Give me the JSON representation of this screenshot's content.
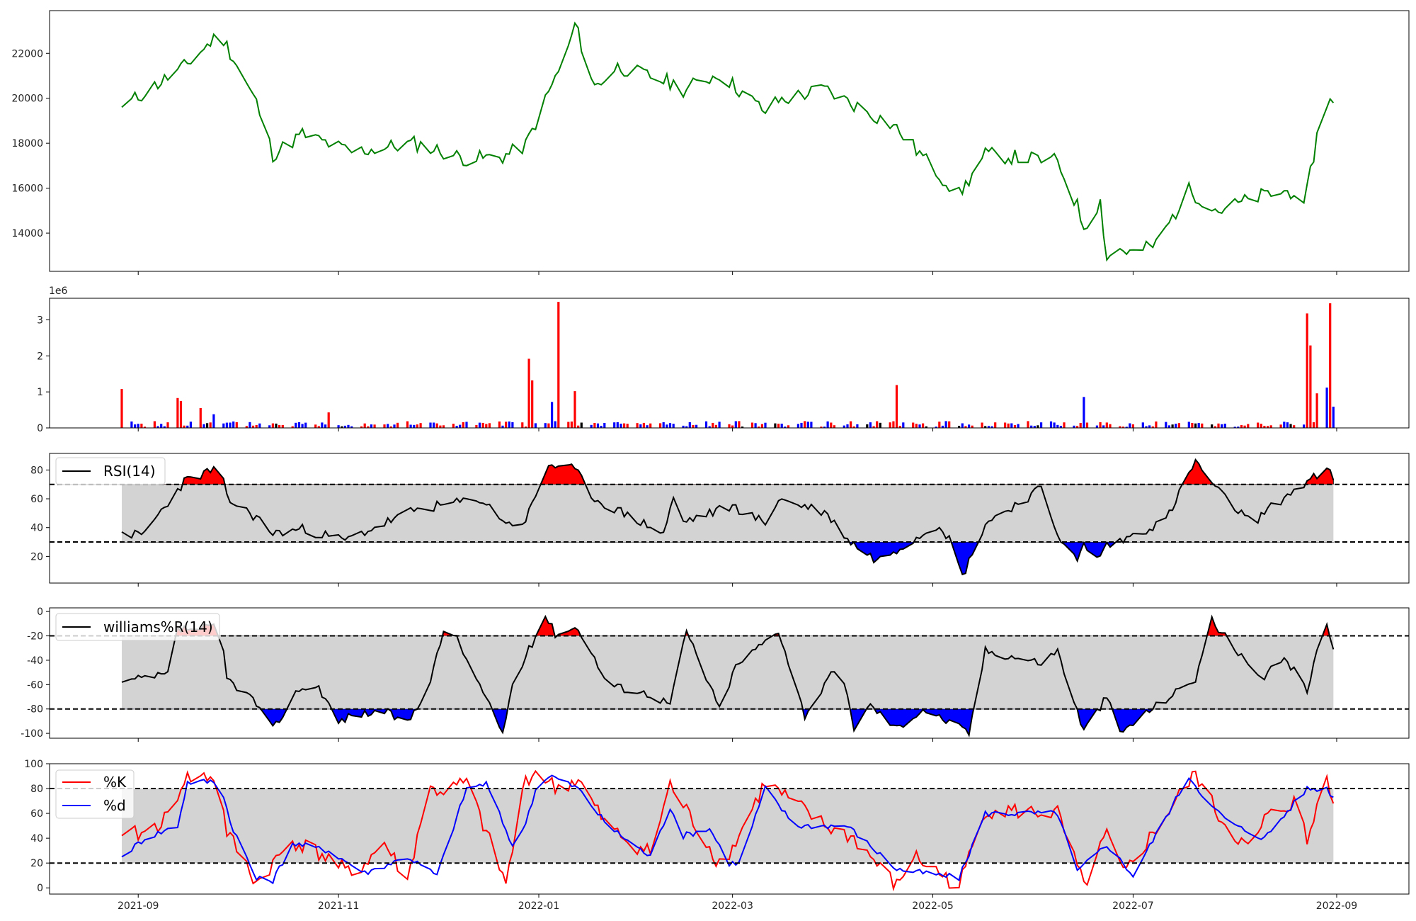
{
  "chart_data": [
    {
      "id": "price",
      "type": "line",
      "title": "",
      "color": "#008000",
      "ylim": [
        12300,
        23900
      ],
      "yticks": [
        14000,
        16000,
        18000,
        20000,
        22000
      ],
      "x": [
        "2021-08-27",
        "2021-09-15",
        "2021-09-26",
        "2021-10-07",
        "2021-10-12",
        "2021-10-21",
        "2021-11-05",
        "2021-11-24",
        "2021-12-10",
        "2021-12-21",
        "2021-12-28",
        "2022-01-06",
        "2022-01-10",
        "2022-01-12",
        "2022-01-18",
        "2022-01-25",
        "2022-02-10",
        "2022-02-14",
        "2022-02-25",
        "2022-03-11",
        "2022-03-15",
        "2022-03-29",
        "2022-04-19",
        "2022-05-03",
        "2022-05-09",
        "2022-05-17",
        "2022-06-08",
        "2022-06-14",
        "2022-06-16",
        "2022-06-21",
        "2022-06-23",
        "2022-06-27",
        "2022-07-01",
        "2022-07-08",
        "2022-07-18",
        "2022-07-27",
        "2022-08-10",
        "2022-08-20",
        "2022-08-22",
        "2022-08-26",
        "2022-08-30",
        "2022-08-31"
      ],
      "values": [
        19600,
        21400,
        22900,
        19800,
        17500,
        18400,
        17600,
        18000,
        17300,
        17400,
        17900,
        20900,
        22200,
        23300,
        20500,
        21400,
        20700,
        20400,
        21100,
        19400,
        19900,
        20400,
        18800,
        16600,
        15700,
        17500,
        17200,
        15200,
        14300,
        15400,
        12900,
        13300,
        13100,
        13500,
        15900,
        15000,
        15700,
        15900,
        15000,
        18300,
        20200,
        19800
      ]
    },
    {
      "id": "volume",
      "type": "bar",
      "offset_text": "1e6",
      "ylim": [
        0,
        3600000
      ],
      "yticks": [
        0,
        1,
        2,
        3
      ],
      "colors": {
        "up": "#ff0000",
        "down": "#0000ff",
        "flat": "#000000"
      },
      "x": [
        "2021-08-27",
        "2021-08-30",
        "2021-09-13",
        "2021-09-14",
        "2021-09-20",
        "2021-09-24",
        "2021-10-29",
        "2021-12-29",
        "2021-12-30",
        "2022-01-05",
        "2022-01-07",
        "2022-01-12",
        "2022-04-20",
        "2022-06-16",
        "2022-08-23",
        "2022-08-24",
        "2022-08-26",
        "2022-08-29",
        "2022-08-30",
        "2022-08-31"
      ],
      "values": [
        1080000,
        180000,
        830000,
        750000,
        550000,
        380000,
        430000,
        1920000,
        1320000,
        720000,
        3500000,
        1020000,
        1190000,
        860000,
        3180000,
        2290000,
        960000,
        1120000,
        3460000,
        590000
      ],
      "up_down": [
        "up",
        "down",
        "up",
        "up",
        "up",
        "down",
        "up",
        "up",
        "up",
        "down",
        "up",
        "up",
        "up",
        "down",
        "up",
        "up",
        "up",
        "down",
        "up",
        "down"
      ]
    },
    {
      "id": "rsi",
      "type": "line",
      "legend": "RSI(14)",
      "ylim": [
        1.5,
        91.5
      ],
      "yticks": [
        20,
        40,
        60,
        80
      ],
      "band": [
        30,
        70
      ],
      "x": [
        "2021-08-27",
        "2021-09-02",
        "2021-09-15",
        "2021-09-26",
        "2021-09-28",
        "2021-10-07",
        "2021-10-12",
        "2021-10-21",
        "2021-11-03",
        "2021-11-05",
        "2021-11-24",
        "2021-12-14",
        "2021-12-23",
        "2021-12-28",
        "2022-01-04",
        "2022-01-12",
        "2022-01-18",
        "2022-02-08",
        "2022-02-11",
        "2022-02-14",
        "2022-03-01",
        "2022-03-11",
        "2022-03-15",
        "2022-03-29",
        "2022-04-06",
        "2022-04-14",
        "2022-04-22",
        "2022-05-03",
        "2022-05-07",
        "2022-05-10",
        "2022-05-17",
        "2022-06-03",
        "2022-06-08",
        "2022-06-14",
        "2022-06-16",
        "2022-06-20",
        "2022-06-23",
        "2022-06-27",
        "2022-07-01",
        "2022-07-11",
        "2022-07-20",
        "2022-07-27",
        "2022-08-06",
        "2022-08-16",
        "2022-08-23",
        "2022-08-30",
        "2022-08-31"
      ],
      "values": [
        37,
        34,
        72,
        82,
        60,
        47,
        36,
        39,
        31,
        33,
        52,
        60,
        42,
        45,
        84,
        80,
        60,
        36,
        60,
        44,
        55,
        43,
        60,
        51,
        30,
        17,
        28,
        43,
        28,
        6,
        43,
        67,
        36,
        16,
        28,
        18,
        28,
        30,
        35,
        45,
        86,
        65,
        43,
        61,
        72,
        80,
        73
      ]
    },
    {
      "id": "williams",
      "type": "line",
      "legend": "williams%R(14)",
      "ylim": [
        -104,
        3
      ],
      "yticks": [
        0,
        -20,
        -40,
        -60,
        -80,
        -100
      ],
      "band": [
        -80,
        -20
      ],
      "x": [
        "2021-08-27",
        "2021-09-10",
        "2021-09-13",
        "2021-09-26",
        "2021-09-28",
        "2021-10-06",
        "2021-10-12",
        "2021-10-20",
        "2021-10-26",
        "2021-11-01",
        "2021-11-05",
        "2021-11-15",
        "2021-11-22",
        "2021-11-29",
        "2021-12-03",
        "2021-12-06",
        "2021-12-21",
        "2021-12-24",
        "2022-01-03",
        "2022-01-06",
        "2022-01-13",
        "2022-01-22",
        "2022-02-04",
        "2022-02-10",
        "2022-02-15",
        "2022-02-25",
        "2022-03-02",
        "2022-03-15",
        "2022-03-23",
        "2022-04-01",
        "2022-04-04",
        "2022-04-07",
        "2022-04-12",
        "2022-04-20",
        "2022-04-28",
        "2022-05-09",
        "2022-05-12",
        "2022-05-17",
        "2022-06-03",
        "2022-06-08",
        "2022-06-14",
        "2022-06-16",
        "2022-06-23",
        "2022-06-27",
        "2022-07-04",
        "2022-07-20",
        "2022-07-25",
        "2022-08-05",
        "2022-08-09",
        "2022-08-16",
        "2022-08-23",
        "2022-08-28",
        "2022-08-31"
      ],
      "values": [
        -58,
        -52,
        -15,
        -13,
        -55,
        -72,
        -97,
        -63,
        -62,
        -91,
        -85,
        -82,
        -92,
        -57,
        -16,
        -17,
        -100,
        -60,
        -3,
        -18,
        -13,
        -60,
        -68,
        -76,
        -16,
        -80,
        -45,
        -15,
        -85,
        -49,
        -60,
        -95,
        -77,
        -96,
        -80,
        -95,
        -100,
        -32,
        -42,
        -32,
        -82,
        -98,
        -70,
        -100,
        -85,
        -55,
        -7,
        -45,
        -57,
        -37,
        -65,
        -5,
        -31
      ]
    },
    {
      "id": "stochastic",
      "type": "line",
      "ylim": [
        -5,
        100
      ],
      "yticks": [
        0,
        20,
        40,
        60,
        80,
        100
      ],
      "band": [
        20,
        80
      ],
      "series": [
        {
          "name": "%K",
          "color": "#ff0000",
          "x": [
            "2021-08-27",
            "2021-09-03",
            "2021-09-10",
            "2021-09-15",
            "2021-09-25",
            "2021-09-28",
            "2021-10-07",
            "2021-10-18",
            "2021-10-27",
            "2021-11-05",
            "2021-11-15",
            "2021-11-22",
            "2021-11-28",
            "2021-12-04",
            "2021-12-10",
            "2021-12-22",
            "2021-12-28",
            "2022-01-01",
            "2022-01-06",
            "2022-01-13",
            "2022-01-22",
            "2022-02-04",
            "2022-02-10",
            "2022-02-25",
            "2022-03-01",
            "2022-03-11",
            "2022-03-29",
            "2022-04-07",
            "2022-04-20",
            "2022-04-25",
            "2022-05-09",
            "2022-05-17",
            "2022-06-08",
            "2022-06-16",
            "2022-06-23",
            "2022-06-28",
            "2022-07-20",
            "2022-07-27",
            "2022-08-06",
            "2022-08-10",
            "2022-08-20",
            "2022-08-23",
            "2022-08-29",
            "2022-08-31"
          ],
          "values": [
            42,
            44,
            57,
            88,
            90,
            45,
            4,
            38,
            27,
            10,
            36,
            5,
            79,
            78,
            85,
            3,
            88,
            95,
            80,
            87,
            48,
            28,
            83,
            20,
            32,
            85,
            50,
            40,
            1,
            26,
            1,
            63,
            60,
            1,
            43,
            10,
            92,
            58,
            28,
            55,
            71,
            36,
            95,
            68
          ]
        },
        {
          "name": "%d",
          "color": "#0000ff",
          "x": [
            "2021-08-27",
            "2021-09-03",
            "2021-09-13",
            "2021-09-16",
            "2021-09-26",
            "2021-09-29",
            "2021-10-07",
            "2021-10-12",
            "2021-10-18",
            "2021-10-29",
            "2021-11-09",
            "2021-11-22",
            "2021-12-01",
            "2021-12-10",
            "2021-12-16",
            "2021-12-25",
            "2022-01-01",
            "2022-01-05",
            "2022-01-13",
            "2022-01-22",
            "2022-02-04",
            "2022-02-10",
            "2022-02-14",
            "2022-02-22",
            "2022-02-28",
            "2022-03-03",
            "2022-03-11",
            "2022-03-20",
            "2022-04-05",
            "2022-04-20",
            "2022-05-09",
            "2022-05-17",
            "2022-06-08",
            "2022-06-14",
            "2022-06-23",
            "2022-07-01",
            "2022-07-18",
            "2022-07-25",
            "2022-08-01",
            "2022-08-10",
            "2022-08-23",
            "2022-08-29",
            "2022-08-31"
          ],
          "values": [
            25,
            40,
            50,
            85,
            86,
            53,
            7,
            6,
            36,
            30,
            12,
            25,
            10,
            80,
            84,
            28,
            87,
            90,
            80,
            50,
            25,
            65,
            42,
            48,
            20,
            20,
            80,
            50,
            50,
            15,
            8,
            60,
            60,
            13,
            35,
            10,
            90,
            65,
            50,
            40,
            80,
            80,
            73
          ]
        }
      ]
    }
  ],
  "x_axis": {
    "min": "2021-08-05",
    "max": "2022-09-23",
    "tick_labels": [
      "2021-09",
      "2021-11",
      "2022-01",
      "2022-03",
      "2022-05",
      "2022-07",
      "2022-09"
    ],
    "tick_dates": [
      "2021-09-01",
      "2021-11-01",
      "2022-01-01",
      "2022-03-01",
      "2022-05-01",
      "2022-07-01",
      "2022-09-01"
    ]
  },
  "colors": {
    "band_fill": "#d3d3d3",
    "overbought_fill": "#ff0000",
    "oversold_fill": "#0000ff",
    "reference_line": "#000000",
    "indicator_line": "#000000"
  }
}
